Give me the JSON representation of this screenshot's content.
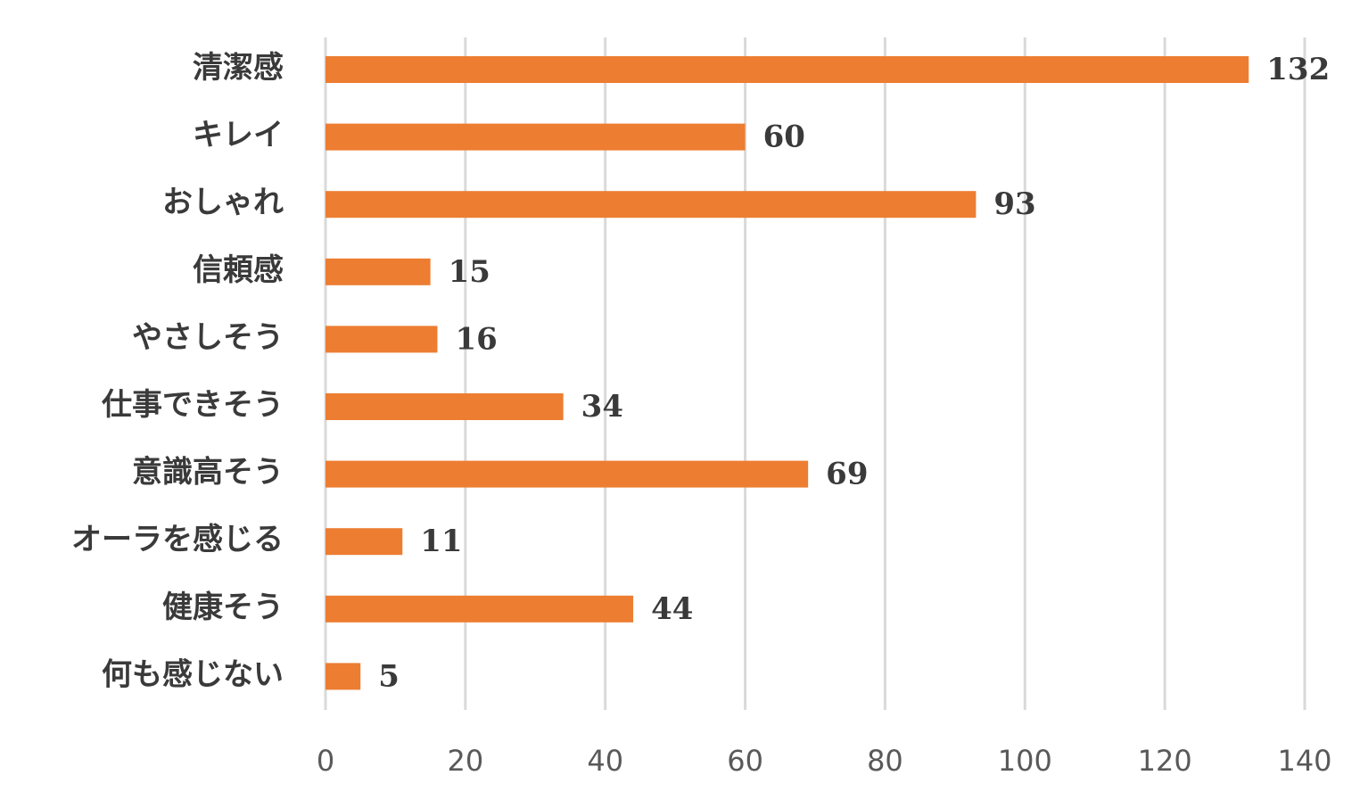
{
  "chart_data": {
    "type": "bar",
    "orientation": "horizontal",
    "categories": [
      "清潔感",
      "キレイ",
      "おしゃれ",
      "信頼感",
      "やさしそう",
      "仕事できそう",
      "意識高そう",
      "オーラを感じる",
      "健康そう",
      "何も感じない"
    ],
    "values": [
      132,
      60,
      93,
      15,
      16,
      34,
      69,
      11,
      44,
      5
    ],
    "xlim": [
      0,
      140
    ],
    "ticks": [
      0,
      20,
      40,
      60,
      80,
      100,
      120,
      140
    ],
    "grid": true,
    "bar_color": "#ed7d31",
    "grid_color": "#d9d9d9"
  }
}
